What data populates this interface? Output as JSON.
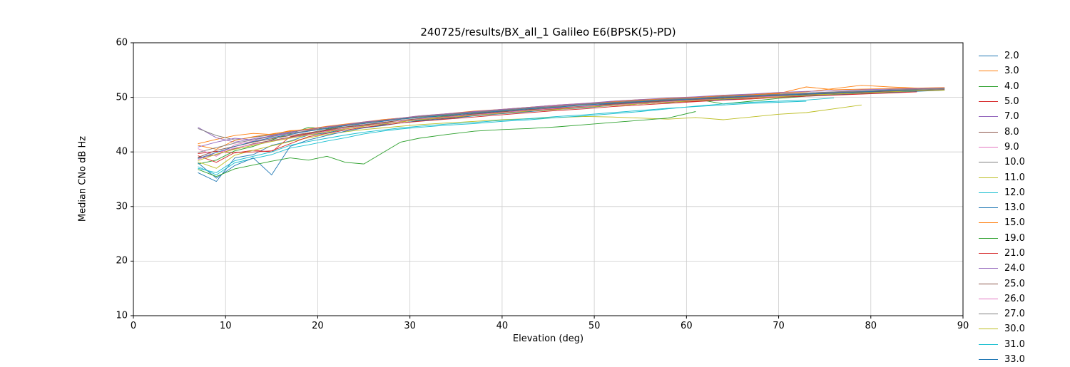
{
  "chart_data": {
    "type": "line",
    "title": "240725/results/BX_all_1 Galileo E6(BPSK(5)-PD)",
    "xlabel": "Elevation (deg)",
    "ylabel": "Median CNo dB Hz",
    "xlim": [
      0,
      90
    ],
    "ylim": [
      10,
      60
    ],
    "xticks": [
      0,
      10,
      20,
      30,
      40,
      50,
      60,
      70,
      80,
      90
    ],
    "yticks": [
      10,
      20,
      30,
      40,
      50,
      60
    ],
    "grid": true,
    "legend_position": "outside-right",
    "x": [
      7,
      9,
      11,
      13,
      15,
      17,
      19,
      21,
      23,
      25,
      27,
      29,
      31,
      34,
      37,
      40,
      43,
      46,
      49,
      52,
      55,
      58,
      61,
      64,
      67,
      70,
      73,
      76,
      79,
      82,
      85,
      88
    ],
    "series": [
      {
        "name": "2.0",
        "color": "#1f77b4",
        "y": [
          36.2,
          34.6,
          38.9,
          39.5,
          41.2,
          42.0,
          43.1,
          43.5,
          44.2,
          44.9,
          45.0,
          45.6,
          45.8,
          46.3,
          46.8,
          47.5,
          47.4,
          48.0,
          48.3,
          48.9,
          49.2,
          49.0,
          49.6,
          49.9,
          50.1,
          50.0,
          50.5,
          50.7,
          51.0,
          51.2,
          51.1,
          51.3
        ]
      },
      {
        "name": "3.0",
        "color": "#ff7f0e",
        "y": [
          41.5,
          42.3,
          43.0,
          43.4,
          43.2,
          43.9,
          44.0,
          44.6,
          44.8,
          45.3,
          45.9,
          46.2,
          46.4,
          47.0,
          47.3,
          47.8,
          48.2,
          48.5,
          48.8,
          49.3,
          49.6,
          49.4,
          50.0,
          50.2,
          50.5,
          50.8,
          51.0,
          51.6,
          52.2,
          51.9,
          51.7,
          null
        ]
      },
      {
        "name": "4.0",
        "color": "#2ca02c",
        "y": [
          37.8,
          38.5,
          40.2,
          41.0,
          42.2,
          43.3,
          44.5,
          44.2,
          44.8,
          45.2,
          45.7,
          46.0,
          46.3,
          46.6,
          47.2,
          47.6,
          48.0,
          48.3,
          48.6,
          49.0,
          49.4,
          49.1,
          49.7,
          48.8,
          49.3,
          49.8,
          50.2,
          50.5,
          50.9,
          51.1,
          51.3,
          51.6
        ]
      },
      {
        "name": "5.0",
        "color": "#d62728",
        "y": [
          39.7,
          40.1,
          39.8,
          40.3,
          40.0,
          42.8,
          43.4,
          43.9,
          44.3,
          44.7,
          45.1,
          45.5,
          45.9,
          46.2,
          46.7,
          47.1,
          47.5,
          47.9,
          48.2,
          48.5,
          48.8,
          49.1,
          49.3,
          49.6,
          49.8,
          50.1,
          50.3,
          50.5,
          50.7,
          50.9,
          null,
          null
        ]
      },
      {
        "name": "7.0",
        "color": "#9467bd",
        "y": [
          44.5,
          42.6,
          41.8,
          42.4,
          42.9,
          43.5,
          43.8,
          44.4,
          44.9,
          45.4,
          45.6,
          46.0,
          46.4,
          46.8,
          47.3,
          47.7,
          48.0,
          48.4,
          48.7,
          49.0,
          49.3,
          49.6,
          49.8,
          50.1,
          50.3,
          50.5,
          50.7,
          50.9,
          51.1,
          51.3,
          51.4,
          null
        ]
      },
      {
        "name": "8.0",
        "color": "#8c564b",
        "y": [
          38.9,
          39.5,
          40.6,
          41.5,
          42.1,
          42.7,
          43.3,
          44.0,
          44.5,
          44.9,
          45.3,
          45.8,
          46.0,
          46.4,
          46.9,
          47.3,
          47.8,
          48.0,
          48.4,
          48.8,
          49.1,
          49.4,
          49.6,
          49.9,
          50.1,
          50.3,
          50.6,
          50.8,
          51.0,
          51.1,
          51.3,
          51.4
        ]
      },
      {
        "name": "9.0",
        "color": "#e377c2",
        "y": [
          40.6,
          39.2,
          41.3,
          42.0,
          42.6,
          43.2,
          43.9,
          44.3,
          44.8,
          45.2,
          45.6,
          46.0,
          46.5,
          46.9,
          47.4,
          47.8,
          48.1,
          48.5,
          48.8,
          49.2,
          49.5,
          49.7,
          50.0,
          50.2,
          50.4,
          50.6,
          50.8,
          51.0,
          51.2,
          51.3,
          51.5,
          null
        ]
      },
      {
        "name": "10.0",
        "color": "#7f7f7f",
        "y": [
          44.3,
          43.0,
          42.2,
          42.7,
          43.1,
          43.7,
          44.1,
          44.6,
          45.0,
          45.4,
          45.8,
          46.1,
          46.5,
          46.9,
          47.3,
          47.7,
          48.1,
          48.4,
          48.8,
          49.1,
          49.4,
          49.7,
          49.9,
          50.2,
          50.4,
          50.6,
          50.8,
          51.0,
          51.2,
          51.4,
          51.5,
          51.6
        ]
      },
      {
        "name": "11.0",
        "color": "#bcbd22",
        "y": [
          38.2,
          37.0,
          39.4,
          40.3,
          41.1,
          41.9,
          42.6,
          43.2,
          43.7,
          44.1,
          44.4,
          44.7,
          45.0,
          45.3,
          45.6,
          45.9,
          46.1,
          46.3,
          46.5,
          46.4,
          46.2,
          46.0,
          46.3,
          45.9,
          46.4,
          46.9,
          47.2,
          47.9,
          48.6,
          null,
          null,
          null
        ]
      },
      {
        "name": "12.0",
        "color": "#17becf",
        "y": [
          37.3,
          35.8,
          38.0,
          38.8,
          39.5,
          40.7,
          41.3,
          42.0,
          42.6,
          43.3,
          43.8,
          44.2,
          44.5,
          44.9,
          45.2,
          45.6,
          45.9,
          46.3,
          46.6,
          47.0,
          47.4,
          47.9,
          48.4,
          48.8,
          49.1,
          49.3,
          49.5,
          49.9,
          null,
          null,
          null,
          null
        ]
      },
      {
        "name": "13.0",
        "color": "#1f77b4",
        "y": [
          38.0,
          35.2,
          37.5,
          38.9,
          35.8,
          41.0,
          42.2,
          43.0,
          43.8,
          44.4,
          44.8,
          45.3,
          45.7,
          46.1,
          46.6,
          47.0,
          47.4,
          47.8,
          48.1,
          48.5,
          48.8,
          49.1,
          49.4,
          49.6,
          49.9,
          50.1,
          50.3,
          50.5,
          50.7,
          50.9,
          51.1,
          null
        ]
      },
      {
        "name": "15.0",
        "color": "#ff7f0e",
        "y": [
          41.2,
          40.5,
          42.1,
          42.8,
          43.3,
          43.8,
          44.2,
          44.7,
          45.1,
          45.5,
          45.9,
          46.2,
          46.6,
          47.0,
          47.5,
          47.8,
          48.2,
          48.6,
          48.9,
          49.2,
          49.5,
          49.8,
          50.0,
          50.3,
          50.5,
          50.7,
          51.9,
          51.4,
          51.5,
          51.6,
          51.7,
          51.8
        ]
      },
      {
        "name": "19.0",
        "color": "#2ca02c",
        "y": [
          36.8,
          35.5,
          36.9,
          37.6,
          38.3,
          38.9,
          38.5,
          39.2,
          38.1,
          37.8,
          39.8,
          41.8,
          42.5,
          43.2,
          43.8,
          44.1,
          44.3,
          44.6,
          45.0,
          45.4,
          45.8,
          46.2,
          47.4,
          null,
          null,
          null,
          null,
          null,
          null,
          null,
          null,
          null
        ]
      },
      {
        "name": "21.0",
        "color": "#d62728",
        "y": [
          39.3,
          38.1,
          39.9,
          40.0,
          40.2,
          41.5,
          42.8,
          43.4,
          44.0,
          44.5,
          44.9,
          45.3,
          45.6,
          46.0,
          46.4,
          46.8,
          47.2,
          47.6,
          47.9,
          48.3,
          48.6,
          48.9,
          49.2,
          49.5,
          49.7,
          50.0,
          50.2,
          50.4,
          50.6,
          50.8,
          51.0,
          null
        ]
      },
      {
        "name": "24.0",
        "color": "#9467bd",
        "y": [
          40.9,
          41.8,
          42.5,
          42.2,
          43.0,
          43.6,
          44.1,
          44.6,
          45.0,
          45.5,
          45.8,
          46.2,
          46.6,
          47.0,
          47.4,
          47.8,
          48.2,
          48.6,
          48.9,
          49.3,
          49.6,
          49.9,
          50.1,
          50.4,
          50.6,
          50.9,
          51.1,
          51.2,
          51.4,
          51.5,
          51.6,
          51.7
        ]
      },
      {
        "name": "25.0",
        "color": "#8c564b",
        "y": [
          39.0,
          40.3,
          41.0,
          41.8,
          42.4,
          43.0,
          43.5,
          44.1,
          44.6,
          45.0,
          45.4,
          45.8,
          46.1,
          46.5,
          47.0,
          47.4,
          47.7,
          48.1,
          48.4,
          48.7,
          49.0,
          49.3,
          49.5,
          49.8,
          50.0,
          50.2,
          50.5,
          50.7,
          50.9,
          51.0,
          51.2,
          null
        ]
      },
      {
        "name": "26.0",
        "color": "#e377c2",
        "y": [
          38.6,
          39.9,
          40.7,
          41.4,
          42.0,
          42.6,
          43.2,
          43.8,
          44.3,
          44.8,
          45.2,
          45.6,
          46.0,
          46.4,
          46.8,
          47.2,
          47.6,
          48.0,
          48.3,
          48.6,
          48.9,
          49.2,
          49.5,
          49.7,
          50.0,
          50.2,
          50.4,
          50.6,
          50.8,
          51.0,
          null,
          null
        ]
      },
      {
        "name": "27.0",
        "color": "#7f7f7f",
        "y": [
          39.9,
          40.8,
          41.6,
          42.2,
          42.8,
          43.4,
          43.9,
          44.4,
          44.9,
          45.3,
          45.7,
          46.1,
          46.4,
          46.8,
          47.2,
          47.6,
          48.0,
          48.3,
          48.7,
          49.0,
          49.3,
          49.6,
          49.8,
          50.1,
          50.3,
          50.5,
          50.7,
          50.9,
          51.1,
          51.3,
          51.4,
          51.5
        ]
      },
      {
        "name": "30.0",
        "color": "#bcbd22",
        "y": [
          38.4,
          39.6,
          40.5,
          41.2,
          41.9,
          42.5,
          43.1,
          43.7,
          44.2,
          44.7,
          45.1,
          45.5,
          45.9,
          46.3,
          46.7,
          47.1,
          47.5,
          47.8,
          48.2,
          48.5,
          48.8,
          49.1,
          49.4,
          49.7,
          49.9,
          50.1,
          50.4,
          50.6,
          50.8,
          51.0,
          51.2,
          51.3
        ]
      },
      {
        "name": "31.0",
        "color": "#17becf",
        "y": [
          37.0,
          36.2,
          38.4,
          39.2,
          40.0,
          41.2,
          41.9,
          42.5,
          43.1,
          43.6,
          44.0,
          44.4,
          44.7,
          45.1,
          45.4,
          45.8,
          46.1,
          46.5,
          46.8,
          47.2,
          47.6,
          48.0,
          48.3,
          48.6,
          48.9,
          49.1,
          49.3,
          null,
          null,
          null,
          null,
          null
        ]
      },
      {
        "name": "33.0",
        "color": "#1f77b4",
        "y": [
          38.8,
          39.9,
          41.0,
          41.9,
          42.6,
          43.2,
          43.8,
          44.3,
          44.8,
          45.2,
          45.6,
          46.0,
          46.3,
          46.7,
          47.1,
          47.5,
          47.9,
          48.2,
          48.6,
          48.9,
          49.2,
          49.5,
          49.7,
          50.0,
          50.2,
          50.4,
          50.6,
          50.8,
          51.0,
          51.2,
          51.3,
          null
        ]
      }
    ]
  }
}
